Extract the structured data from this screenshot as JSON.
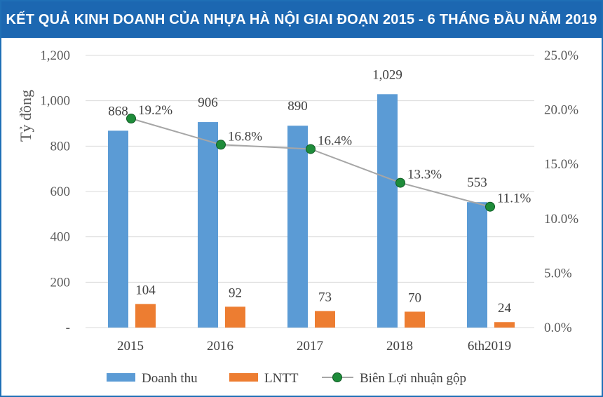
{
  "title": "KẾT QUẢ KINH DOANH CỦA NHỰA HÀ NỘI GIAI ĐOẠN 2015 - 6 THÁNG ĐẦU NĂM 2019",
  "colors": {
    "title_bg": "#1c67b1",
    "revenue": "#5b9bd5",
    "profit": "#ed7d31",
    "margin_line": "#a6a6a6",
    "margin_marker": "#1e8c3a"
  },
  "chart_data": {
    "type": "bar",
    "categories": [
      "2015",
      "2016",
      "2017",
      "2018",
      "6th2019"
    ],
    "series": [
      {
        "name": "Doanh thu",
        "values": [
          868,
          906,
          890,
          1029,
          553
        ],
        "labels": [
          "868",
          "906",
          "890",
          "1,029",
          "553"
        ]
      },
      {
        "name": "LNTT",
        "values": [
          104,
          92,
          73,
          70,
          24
        ],
        "labels": [
          "104",
          "92",
          "73",
          "70",
          "24"
        ]
      },
      {
        "name": "Biên Lợi nhuận gộp",
        "type": "line",
        "axis": "right",
        "values": [
          19.2,
          16.8,
          16.4,
          13.3,
          11.1
        ],
        "labels": [
          "19.2%",
          "16.8%",
          "16.4%",
          "13.3%",
          "11.1%"
        ]
      }
    ],
    "ylabel": "Tỷ đồng",
    "ylim": [
      0,
      1200
    ],
    "y_ticks": [
      "-",
      "200",
      "400",
      "600",
      "800",
      "1,000",
      "1,200"
    ],
    "y2lim": [
      0,
      25
    ],
    "y2_ticks": [
      "0.0%",
      "5.0%",
      "10.0%",
      "15.0%",
      "20.0%",
      "25.0%"
    ],
    "grid": true,
    "legend": "bottom"
  }
}
